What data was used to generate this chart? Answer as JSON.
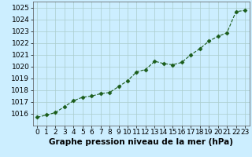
{
  "x": [
    0,
    1,
    2,
    3,
    4,
    5,
    6,
    7,
    8,
    9,
    10,
    11,
    12,
    13,
    14,
    15,
    16,
    17,
    18,
    19,
    20,
    21,
    22,
    23
  ],
  "y": [
    1015.7,
    1015.9,
    1016.1,
    1016.6,
    1017.1,
    1017.4,
    1017.5,
    1017.7,
    1017.8,
    1018.3,
    1018.8,
    1019.55,
    1019.75,
    1020.45,
    1020.25,
    1020.15,
    1020.35,
    1021.0,
    1021.5,
    1022.15,
    1022.55,
    1022.85,
    1024.65,
    1024.75
  ],
  "line_color": "#1a5c1a",
  "marker": "D",
  "marker_size": 2.5,
  "background_color": "#cceeff",
  "grid_color": "#aacccc",
  "xlabel": "Graphe pression niveau de la mer (hPa)",
  "xlabel_fontsize": 7.5,
  "ylabel_fontsize": 6.5,
  "tick_fontsize": 6.5,
  "ylim": [
    1015.0,
    1025.5
  ],
  "xlim": [
    -0.5,
    23.5
  ],
  "yticks": [
    1016,
    1017,
    1018,
    1019,
    1020,
    1021,
    1022,
    1023,
    1024,
    1025
  ],
  "xticks": [
    0,
    1,
    2,
    3,
    4,
    5,
    6,
    7,
    8,
    9,
    10,
    11,
    12,
    13,
    14,
    15,
    16,
    17,
    18,
    19,
    20,
    21,
    22,
    23
  ]
}
